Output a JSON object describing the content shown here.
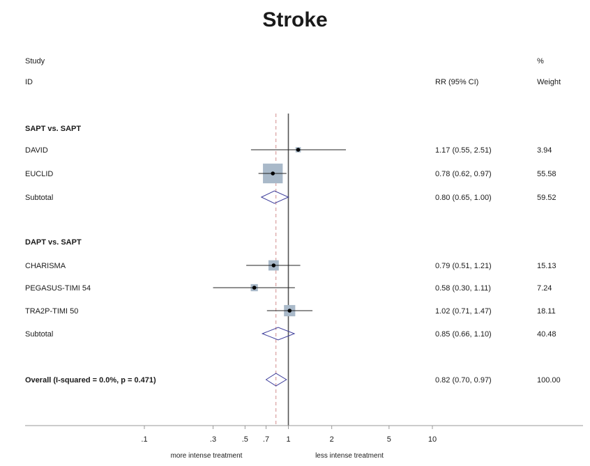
{
  "chart_data": {
    "type": "forest",
    "title": "Stroke",
    "columns": {
      "study_header_1": "Study",
      "study_header_2": "ID",
      "effect_header": "RR (95% CI)",
      "weight_header_1": "%",
      "weight_header_2": "Weight"
    },
    "scale": "log",
    "xlim": [
      0.1,
      10
    ],
    "ticks": [
      {
        "value": 0.1,
        "label": ".1"
      },
      {
        "value": 0.3,
        "label": ".3"
      },
      {
        "value": 0.5,
        "label": ".5"
      },
      {
        "value": 0.7,
        "label": ".7"
      },
      {
        "value": 1,
        "label": "1"
      },
      {
        "value": 2,
        "label": "2"
      },
      {
        "value": 5,
        "label": "5"
      },
      {
        "value": 10,
        "label": "10"
      }
    ],
    "reference_line": 1,
    "overall_estimate_line": 0.82,
    "direction_labels": {
      "left": "more intense treatment",
      "right": "less intense treatment"
    },
    "groups": [
      {
        "name": "SAPT vs. SAPT",
        "studies": [
          {
            "id": "DAVID",
            "rr": 1.17,
            "lo": 0.55,
            "hi": 2.51,
            "ci_text": "1.17 (0.55, 2.51)",
            "weight": "3.94"
          },
          {
            "id": "EUCLID",
            "rr": 0.78,
            "lo": 0.62,
            "hi": 0.97,
            "ci_text": "0.78 (0.62, 0.97)",
            "weight": "55.58"
          }
        ],
        "subtotal": {
          "label": "Subtotal",
          "rr": 0.8,
          "lo": 0.65,
          "hi": 1.0,
          "ci_text": "0.80 (0.65, 1.00)",
          "weight": "59.52"
        }
      },
      {
        "name": "DAPT vs. SAPT",
        "studies": [
          {
            "id": "CHARISMA",
            "rr": 0.79,
            "lo": 0.51,
            "hi": 1.21,
            "ci_text": "0.79 (0.51, 1.21)",
            "weight": "15.13"
          },
          {
            "id": "PEGASUS-TIMI 54",
            "rr": 0.58,
            "lo": 0.3,
            "hi": 1.11,
            "ci_text": "0.58 (0.30, 1.11)",
            "weight": "7.24"
          },
          {
            "id": "TRA2P-TIMI 50",
            "rr": 1.02,
            "lo": 0.71,
            "hi": 1.47,
            "ci_text": "1.02 (0.71, 1.47)",
            "weight": "18.11"
          }
        ],
        "subtotal": {
          "label": "Subtotal",
          "rr": 0.85,
          "lo": 0.66,
          "hi": 1.1,
          "ci_text": "0.85 (0.66, 1.10)",
          "weight": "40.48"
        }
      }
    ],
    "overall": {
      "label": "Overall  (I-squared = 0.0%, p = 0.471)",
      "rr": 0.82,
      "lo": 0.7,
      "hi": 0.97,
      "ci_text": "0.82 (0.70, 0.97)",
      "weight": "100.00"
    },
    "colors": {
      "box": "#a9b9c9",
      "diamond": "#3c3c9a",
      "line": "#222222",
      "ref_line": "#555555",
      "dash_line": "#d08a8a"
    }
  }
}
